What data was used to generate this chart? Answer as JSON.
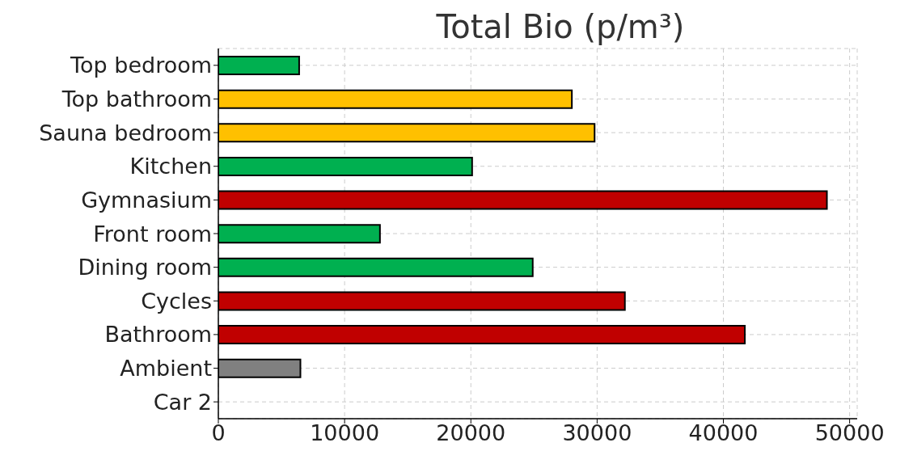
{
  "chart_data": {
    "type": "bar",
    "orientation": "horizontal",
    "title": "Total Bio (p/m³)",
    "categories": [
      "Top bedroom",
      "Top bathroom",
      "Sauna bedroom",
      "Kitchen",
      "Gymnasium",
      "Front room",
      "Dining room",
      "Cycles",
      "Bathroom",
      "Ambient",
      "Car 2"
    ],
    "values": [
      6400,
      28000,
      29800,
      20100,
      48200,
      12800,
      24900,
      32200,
      41700,
      6500,
      0
    ],
    "colors": [
      "#00b050",
      "#ffc000",
      "#ffc000",
      "#00b050",
      "#c00000",
      "#00b050",
      "#00b050",
      "#c00000",
      "#c00000",
      "#808080",
      "#00b050"
    ],
    "xlim": [
      0,
      50600
    ],
    "xticks": [
      0,
      10000,
      20000,
      30000,
      40000,
      50000
    ],
    "grid": true
  }
}
